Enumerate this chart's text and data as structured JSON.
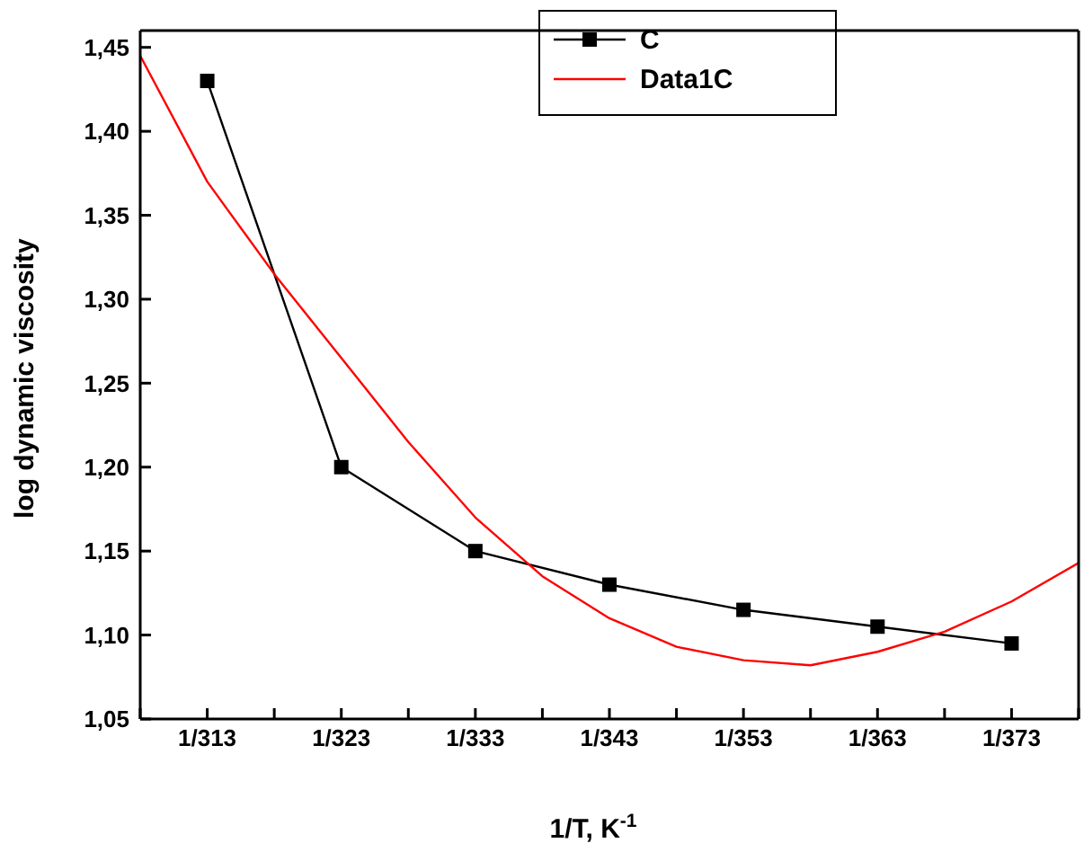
{
  "chart_data": {
    "type": "line",
    "xlabel": "1/T, K$^{-1}$",
    "ylabel": "log dynamic viscosity",
    "categories": [
      null,
      "1/313",
      null,
      "1/323",
      null,
      "1/333",
      null,
      "1/343",
      null,
      "1/353",
      null,
      "1/363",
      null,
      "1/373",
      null
    ],
    "ylim": [
      1.05,
      1.46
    ],
    "yticks": [
      {
        "value": 1.05,
        "label": "1,05"
      },
      {
        "value": 1.1,
        "label": "1,10"
      },
      {
        "value": 1.15,
        "label": "1,15"
      },
      {
        "value": 1.2,
        "label": "1,20"
      },
      {
        "value": 1.25,
        "label": "1,25"
      },
      {
        "value": 1.3,
        "label": "1,30"
      },
      {
        "value": 1.35,
        "label": "1,35"
      },
      {
        "value": 1.4,
        "label": "1,40"
      },
      {
        "value": 1.45,
        "label": "1,45"
      }
    ],
    "legend": "top right",
    "grid": false,
    "series": [
      {
        "name": "C",
        "color": "#000000",
        "marker": "square",
        "x": [
          "1/313",
          "1/323",
          "1/333",
          "1/343",
          "1/353",
          "1/363",
          "1/373"
        ],
        "values": [
          1.43,
          1.2,
          1.15,
          1.13,
          1.115,
          1.105,
          1.095
        ]
      },
      {
        "name": "Data1C",
        "color": "#ff0000",
        "marker": "none",
        "values": [
          1.445,
          1.37,
          1.315,
          1.265,
          1.215,
          1.17,
          1.135,
          1.11,
          1.093,
          1.085,
          1.082,
          1.09,
          1.102,
          1.12,
          1.143
        ]
      }
    ]
  }
}
